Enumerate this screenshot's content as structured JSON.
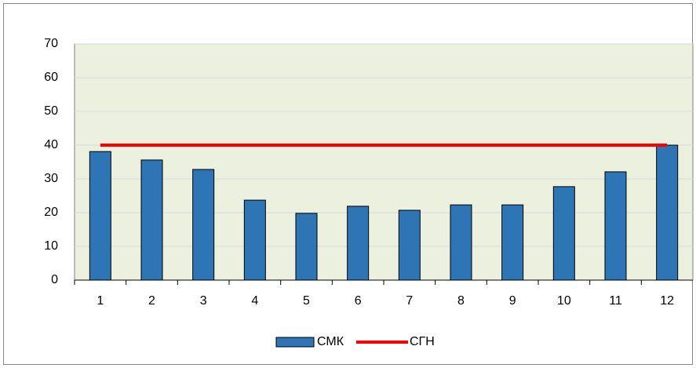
{
  "chart_data": {
    "type": "bar",
    "categories": [
      "1",
      "2",
      "3",
      "4",
      "5",
      "6",
      "7",
      "8",
      "9",
      "10",
      "11",
      "12"
    ],
    "series": [
      {
        "name": "СМК",
        "type": "bar",
        "color": "#2e75b6",
        "values": [
          38.1,
          35.6,
          32.8,
          23.7,
          19.8,
          21.9,
          20.7,
          22.3,
          22.3,
          27.7,
          32.1,
          40
        ]
      },
      {
        "name": "СГН",
        "type": "line",
        "color": "#ff0000",
        "values": [
          40,
          40,
          40,
          40,
          40,
          40,
          40,
          40,
          40,
          40,
          40,
          40
        ]
      }
    ],
    "ylim": [
      0,
      70
    ],
    "yticks": [
      0,
      10,
      20,
      30,
      40,
      50,
      60,
      70
    ],
    "grid": true,
    "legend": "bottom"
  }
}
